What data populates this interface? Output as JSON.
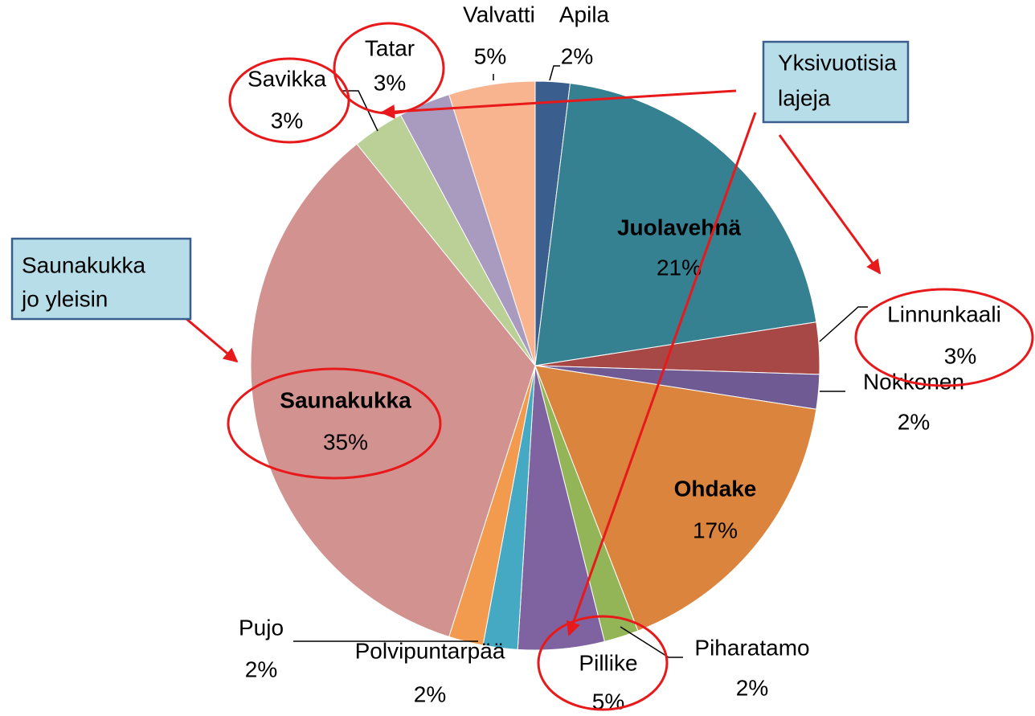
{
  "chart_data": {
    "type": "pie",
    "categories": [
      "Apila",
      "Juolavehnä",
      "Linnunkaali",
      "Nokkonen",
      "Ohdake",
      "Piharatamo",
      "Pillike",
      "Polvipuntarpää",
      "Pujo",
      "Saunakukka",
      "Savikka",
      "Tatar",
      "Valvatti"
    ],
    "values": [
      2,
      21,
      3,
      2,
      17,
      2,
      5,
      2,
      2,
      35,
      3,
      3,
      5
    ],
    "value_labels": [
      "2%",
      "21%",
      "3%",
      "2%",
      "17%",
      "2%",
      "5%",
      "2%",
      "2%",
      "35%",
      "3%",
      "3%",
      "5%"
    ],
    "colors": [
      "#3a5f8f",
      "#358091",
      "#a84846",
      "#6f5a93",
      "#da843e",
      "#93b457",
      "#7f63a1",
      "#46a9c3",
      "#f29a4e",
      "#d19290",
      "#bad096",
      "#a99bc0",
      "#f8b48e"
    ],
    "annotations": [
      {
        "lines": [
          "Yksivuotisia",
          "lajeja"
        ]
      },
      {
        "lines": [
          "Saunakukka",
          "jo yleisin"
        ]
      }
    ]
  }
}
